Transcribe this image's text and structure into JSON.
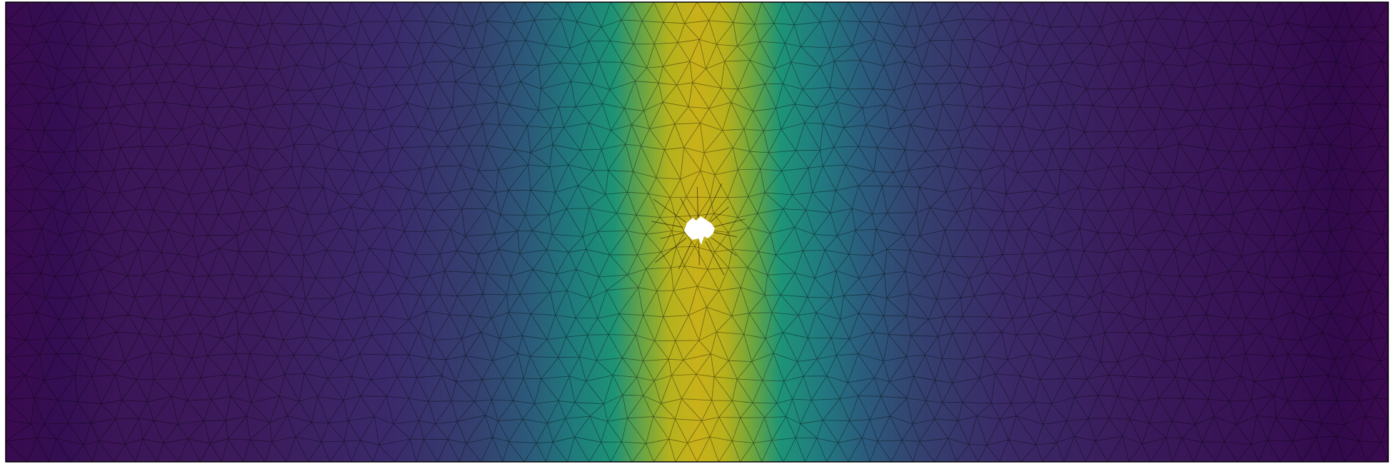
{
  "figure": {
    "kind": "finite-element mesh colormap render",
    "colormap": "viridis",
    "colormap_stops": [
      "#440154",
      "#31688e",
      "#21918c",
      "#35b779",
      "#bddf26",
      "#d9c11b"
    ],
    "mesh_edge_color": "#000000",
    "border_color": "#000000",
    "hole_color": "#ffffff",
    "field_peak_fraction_of_width": 0.5
  }
}
